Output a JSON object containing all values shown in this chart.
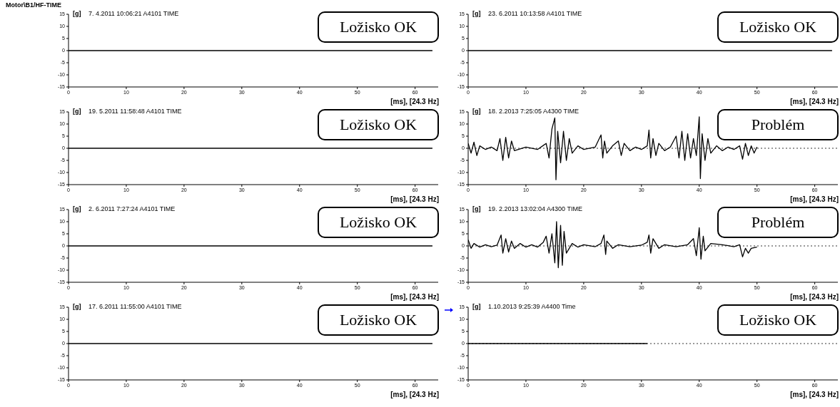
{
  "chart_data": [
    {
      "type": "line",
      "title": "Motor\\B1/HF-TIME",
      "subtitle": "7. 4.2011 10:06:21 A4101 TIME",
      "ylabel": "[g]",
      "xlabel": "[ms], [24.3 Hz]",
      "annotations": [
        "Ložisko OK"
      ],
      "xlim": [
        0,
        64
      ],
      "ylim": [
        -15,
        15
      ],
      "xticks": [
        0,
        10,
        20,
        30,
        40,
        50,
        60
      ],
      "yticks": [
        -15,
        -10,
        -5,
        0,
        5,
        10,
        15
      ],
      "series": [
        {
          "color": "#000000",
          "x": [
            0,
            63
          ],
          "values": [
            0,
            0
          ]
        }
      ]
    },
    {
      "type": "line",
      "subtitle": "23. 6.2011 10:13:58 A4101 TIME",
      "ylabel": "[g]",
      "xlabel": "[ms], [24.3 Hz]",
      "annotations": [
        "Ložisko OK"
      ],
      "xlim": [
        0,
        64
      ],
      "ylim": [
        -15,
        15
      ],
      "xticks": [
        0,
        10,
        20,
        30,
        40,
        50,
        60
      ],
      "yticks": [
        -15,
        -10,
        -5,
        0,
        5,
        10,
        15
      ],
      "series": [
        {
          "color": "#000000",
          "x": [
            0,
            63
          ],
          "values": [
            0,
            0
          ]
        }
      ]
    },
    {
      "type": "line",
      "subtitle": "19. 5.2011 11:58:48 A4101 TIME",
      "ylabel": "[g]",
      "xlabel": "[ms], [24.3 Hz]",
      "annotations": [
        "Ložisko OK"
      ],
      "xlim": [
        0,
        64
      ],
      "ylim": [
        -15,
        15
      ],
      "xticks": [
        0,
        10,
        20,
        30,
        40,
        50,
        60
      ],
      "yticks": [
        -15,
        -10,
        -5,
        0,
        5,
        10,
        15
      ],
      "series": [
        {
          "color": "#000000",
          "x": [
            0,
            63
          ],
          "values": [
            0,
            0
          ]
        }
      ]
    },
    {
      "type": "line",
      "subtitle": "18. 2.2013 7:25:05 A4300 TIME",
      "ylabel": "[g]",
      "xlabel": "[ms], [24.3 Hz]",
      "annotations": [
        "Problém"
      ],
      "xlim": [
        0,
        64
      ],
      "ylim": [
        -15,
        15
      ],
      "xticks": [
        0,
        10,
        20,
        30,
        40,
        50,
        60
      ],
      "yticks": [
        -15,
        -10,
        -5,
        0,
        5,
        10,
        15
      ],
      "ref_lines": [
        {
          "axis": "y",
          "value": 0,
          "line_style": "dotted"
        }
      ],
      "series": [
        {
          "color": "#000000",
          "x": [
            0,
            0.5,
            1,
            1.5,
            2,
            3,
            4,
            5,
            5.5,
            6,
            6.5,
            7,
            7.5,
            8,
            10,
            12,
            13.5,
            14,
            14.5,
            15,
            15.2,
            15.5,
            16,
            16.5,
            17,
            17.5,
            18,
            19,
            20,
            22,
            23,
            23.3,
            23.6,
            24,
            25,
            26,
            26.5,
            27,
            28,
            29,
            30,
            31,
            31.3,
            31.6,
            32,
            32.5,
            33,
            34,
            35,
            36,
            36.5,
            37,
            37.5,
            38,
            38.5,
            39,
            39.5,
            40,
            40.2,
            40.5,
            41,
            41.5,
            42,
            43,
            44,
            45,
            46,
            47,
            47.5,
            48,
            48.5,
            49,
            49.5,
            50
          ],
          "values": [
            2,
            -2,
            2.5,
            -3,
            1,
            -0.5,
            0.5,
            -1,
            4,
            -5,
            4.5,
            -4,
            3,
            -1,
            0.5,
            -0.5,
            2,
            -4,
            8,
            12.5,
            -13,
            7,
            -6,
            7,
            -5,
            4,
            -2,
            1,
            -0.5,
            0.5,
            5.5,
            -4,
            3,
            -2,
            1,
            3,
            -3,
            2,
            -1,
            0.5,
            -0.5,
            1,
            7.5,
            -4,
            4,
            -3,
            2,
            -1,
            0.5,
            5,
            -4,
            7,
            -5,
            6,
            -4,
            4,
            -3,
            13,
            -12.5,
            6,
            -5,
            4,
            -2,
            1,
            -1,
            0.5,
            -0.5,
            1,
            -4.5,
            2,
            -3,
            1,
            -2,
            0.5
          ]
        }
      ]
    },
    {
      "type": "line",
      "subtitle": "2. 6.2011 7:27:24 A4101 TIME",
      "ylabel": "[g]",
      "xlabel": "[ms], [24.3 Hz]",
      "annotations": [
        "Ložisko OK"
      ],
      "xlim": [
        0,
        64
      ],
      "ylim": [
        -15,
        15
      ],
      "xticks": [
        0,
        10,
        20,
        30,
        40,
        50,
        60
      ],
      "yticks": [
        -15,
        -10,
        -5,
        0,
        5,
        10,
        15
      ],
      "series": [
        {
          "color": "#000000",
          "x": [
            0,
            63
          ],
          "values": [
            0,
            0
          ]
        }
      ]
    },
    {
      "type": "line",
      "subtitle": "19. 2.2013 13:02:04 A4300 TIME",
      "ylabel": "[g]",
      "xlabel": "[ms], [24.3 Hz]",
      "annotations": [
        "Problém"
      ],
      "xlim": [
        0,
        64
      ],
      "ylim": [
        -15,
        15
      ],
      "xticks": [
        0,
        10,
        20,
        30,
        40,
        50,
        60
      ],
      "yticks": [
        -15,
        -10,
        -5,
        0,
        5,
        10,
        15
      ],
      "ref_lines": [
        {
          "axis": "y",
          "value": 0,
          "line_style": "dotted"
        }
      ],
      "series": [
        {
          "color": "#000000",
          "x": [
            0,
            0.5,
            1,
            2,
            3,
            4,
            5,
            5.7,
            6,
            6.5,
            7,
            7.5,
            8,
            9,
            10,
            11,
            12,
            13,
            13.5,
            14,
            14.5,
            15,
            15.3,
            15.6,
            16,
            16.3,
            16.6,
            17,
            18,
            19,
            20,
            22,
            23,
            23.5,
            23.8,
            24,
            25,
            26,
            28,
            30,
            31,
            31.3,
            31.6,
            32,
            33,
            34,
            36,
            38,
            39,
            39.5,
            40,
            40.3,
            40.7,
            41,
            42,
            44,
            46,
            47,
            47.5,
            48,
            48.5,
            49,
            50
          ],
          "values": [
            2.5,
            -1,
            1,
            -0.5,
            0.5,
            -0.3,
            0.3,
            4.5,
            -3,
            3,
            -2.5,
            2,
            -1,
            1,
            -0.5,
            0.5,
            -0.5,
            1.5,
            4,
            -3,
            5,
            -7,
            10,
            -9,
            8.5,
            -8,
            6,
            -3,
            1,
            -0.5,
            0.5,
            -0.3,
            1,
            4.5,
            -3.5,
            2,
            -1,
            0.5,
            -0.3,
            0.3,
            1.5,
            4.5,
            -3,
            3,
            -1,
            0.5,
            -0.3,
            0.5,
            3,
            -4,
            7.5,
            -5.5,
            4,
            -2,
            1,
            0.5,
            -0.3,
            0.5,
            -4.5,
            -1,
            -3,
            -1,
            -0.5
          ]
        }
      ]
    },
    {
      "type": "line",
      "subtitle": "17. 6.2011 11:55:00 A4101 TIME",
      "ylabel": "[g]",
      "xlabel": "[ms], [24.3 Hz]",
      "annotations": [
        "Ložisko OK"
      ],
      "xlim": [
        0,
        64
      ],
      "ylim": [
        -15,
        15
      ],
      "xticks": [
        0,
        10,
        20,
        30,
        40,
        50,
        60
      ],
      "yticks": [
        -15,
        -10,
        -5,
        0,
        5,
        10,
        15
      ],
      "series": [
        {
          "color": "#000000",
          "x": [
            0,
            63
          ],
          "values": [
            0,
            0
          ]
        }
      ]
    },
    {
      "type": "line",
      "subtitle": "1.10.2013 9:25:39 A4400 Time",
      "ylabel": "[g]",
      "xlabel": "[ms], [24.3 Hz]",
      "annotations": [
        "Ložisko OK"
      ],
      "xlim": [
        0,
        64
      ],
      "ylim": [
        -15,
        15
      ],
      "xticks": [
        0,
        10,
        20,
        30,
        40,
        50,
        60
      ],
      "yticks": [
        -15,
        -10,
        -5,
        0,
        5,
        10,
        15
      ],
      "ref_lines": [
        {
          "axis": "y",
          "value": 0,
          "line_style": "dotted"
        }
      ],
      "series": [
        {
          "color": "#000000",
          "x": [
            0,
            31
          ],
          "values": [
            0,
            0
          ]
        }
      ]
    }
  ]
}
